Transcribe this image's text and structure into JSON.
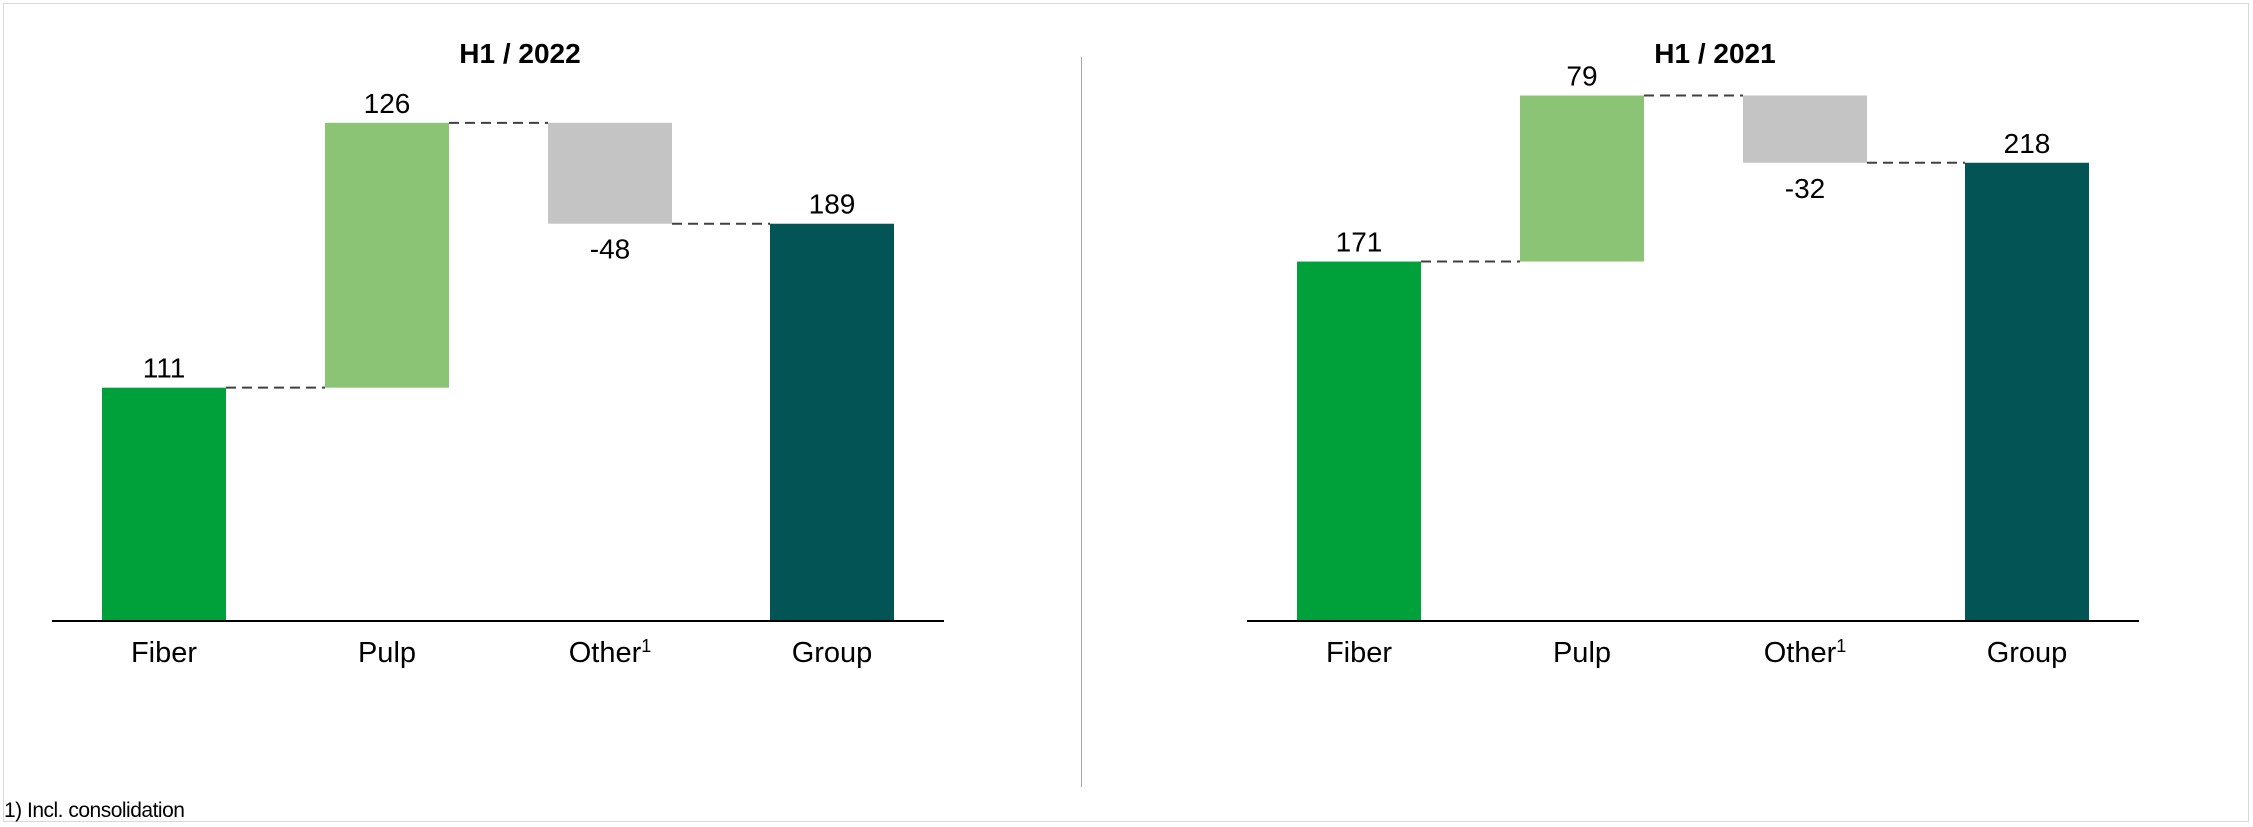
{
  "footnote": "1) Incl. consolidation",
  "colors": {
    "fiber": "#00a03b",
    "pulp": "#8bc474",
    "other": "#c4c4c4",
    "group": "#035555",
    "axis": "#000000",
    "connector": "#404040"
  },
  "chart_data": [
    {
      "type": "bar",
      "subtype": "waterfall",
      "title": "H1 / 2022",
      "categories": [
        "Fiber",
        "Pulp",
        "Other",
        "Group"
      ],
      "category_superscripts": [
        "",
        "",
        "1",
        ""
      ],
      "values": [
        111,
        126,
        -48,
        189
      ],
      "value_labels": [
        "111",
        "126",
        "-48",
        "189"
      ],
      "kinds": [
        "total",
        "delta",
        "delta",
        "total"
      ],
      "color_keys": [
        "fiber",
        "pulp",
        "other",
        "group"
      ],
      "ylim": [
        0,
        275
      ],
      "grid": false,
      "legend": "none"
    },
    {
      "type": "bar",
      "subtype": "waterfall",
      "title": "H1 / 2021",
      "categories": [
        "Fiber",
        "Pulp",
        "Other",
        "Group"
      ],
      "category_superscripts": [
        "",
        "",
        "1",
        ""
      ],
      "values": [
        171,
        79,
        -32,
        218
      ],
      "value_labels": [
        "171",
        "79",
        "-32",
        "218"
      ],
      "kinds": [
        "total",
        "delta",
        "delta",
        "total"
      ],
      "color_keys": [
        "fiber",
        "pulp",
        "other",
        "group"
      ],
      "ylim": [
        0,
        275
      ],
      "grid": false,
      "legend": "none"
    }
  ]
}
